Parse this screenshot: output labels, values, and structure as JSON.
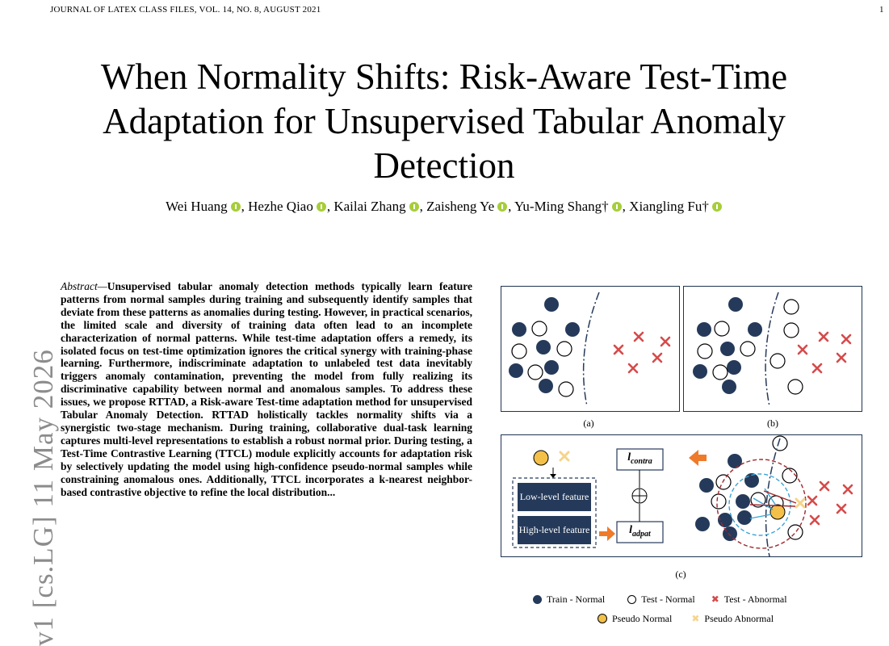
{
  "header": {
    "journal": "JOURNAL OF LATEX CLASS FILES, VOL. 14, NO. 8, AUGUST 2021",
    "page_number": "1"
  },
  "title": "When Normality Shifts: Risk-Aware Test-Time Adaptation for Unsupervised Tabular Anomaly Detection",
  "authors": [
    "Wei Huang",
    "Hezhe Qiao",
    "Kailai Zhang",
    "Zaisheng Ye",
    "Yu-Ming Shang†",
    "Xiangling Fu†"
  ],
  "arxiv_stamp": "v1  [cs.LG]  11 May 2026",
  "abstract": {
    "lead": "Abstract—",
    "text": "Unsupervised tabular anomaly detection methods typically learn feature patterns from normal samples during training and subsequently identify samples that deviate from these patterns as anomalies during testing. However, in practical scenarios, the limited scale and diversity of training data often lead to an incomplete characterization of normal patterns. While test-time adaptation offers a remedy, its isolated focus on test-time optimization ignores the critical synergy with training-phase learning. Furthermore, indiscriminate adaptation to unlabeled test data inevitably triggers anomaly contamination, preventing the model from fully realizing its discriminative capability between normal and anomalous samples. To address these issues, we propose RTTAD, a Risk-aware Test-time adaptation method for unsupervised Tabular Anomaly Detection. RTTAD holistically tackles normality shifts via a synergistic two-stage mechanism. During training, collaborative dual-task learning captures multi-level representations to establish a robust normal prior. During testing, a Test-Time Contrastive Learning (TTCL) module explicitly accounts for adaptation risk by selectively updating the model using high-confidence pseudo-normal samples while constraining anomalous ones. Additionally, TTCL incorporates a k-nearest neighbor-based contrastive objective to refine the local distribution..."
  },
  "figure": {
    "captions": [
      "(a)",
      "(b)",
      "(c)"
    ],
    "panel_c": {
      "low_level": "Low-level feature",
      "high_level": "High-level feature",
      "l_contra": "l",
      "l_contra_sub": "contra",
      "l_adpat": "l",
      "l_adpat_sub": "adpat"
    },
    "legend": {
      "train_normal": "Train - Normal",
      "test_normal": "Test - Normal",
      "test_abnormal": "Test - Abnormal",
      "pseudo_normal": "Pseudo Normal",
      "pseudo_abnormal": "Pseudo Abnormal"
    },
    "colors": {
      "navy": "#253a5a",
      "red": "#d64a4a",
      "orange": "#ef7a2a",
      "yellow": "#f3c04a",
      "pseudo_x": "#f5d48a",
      "blue_dash": "#3aa4d6"
    }
  }
}
